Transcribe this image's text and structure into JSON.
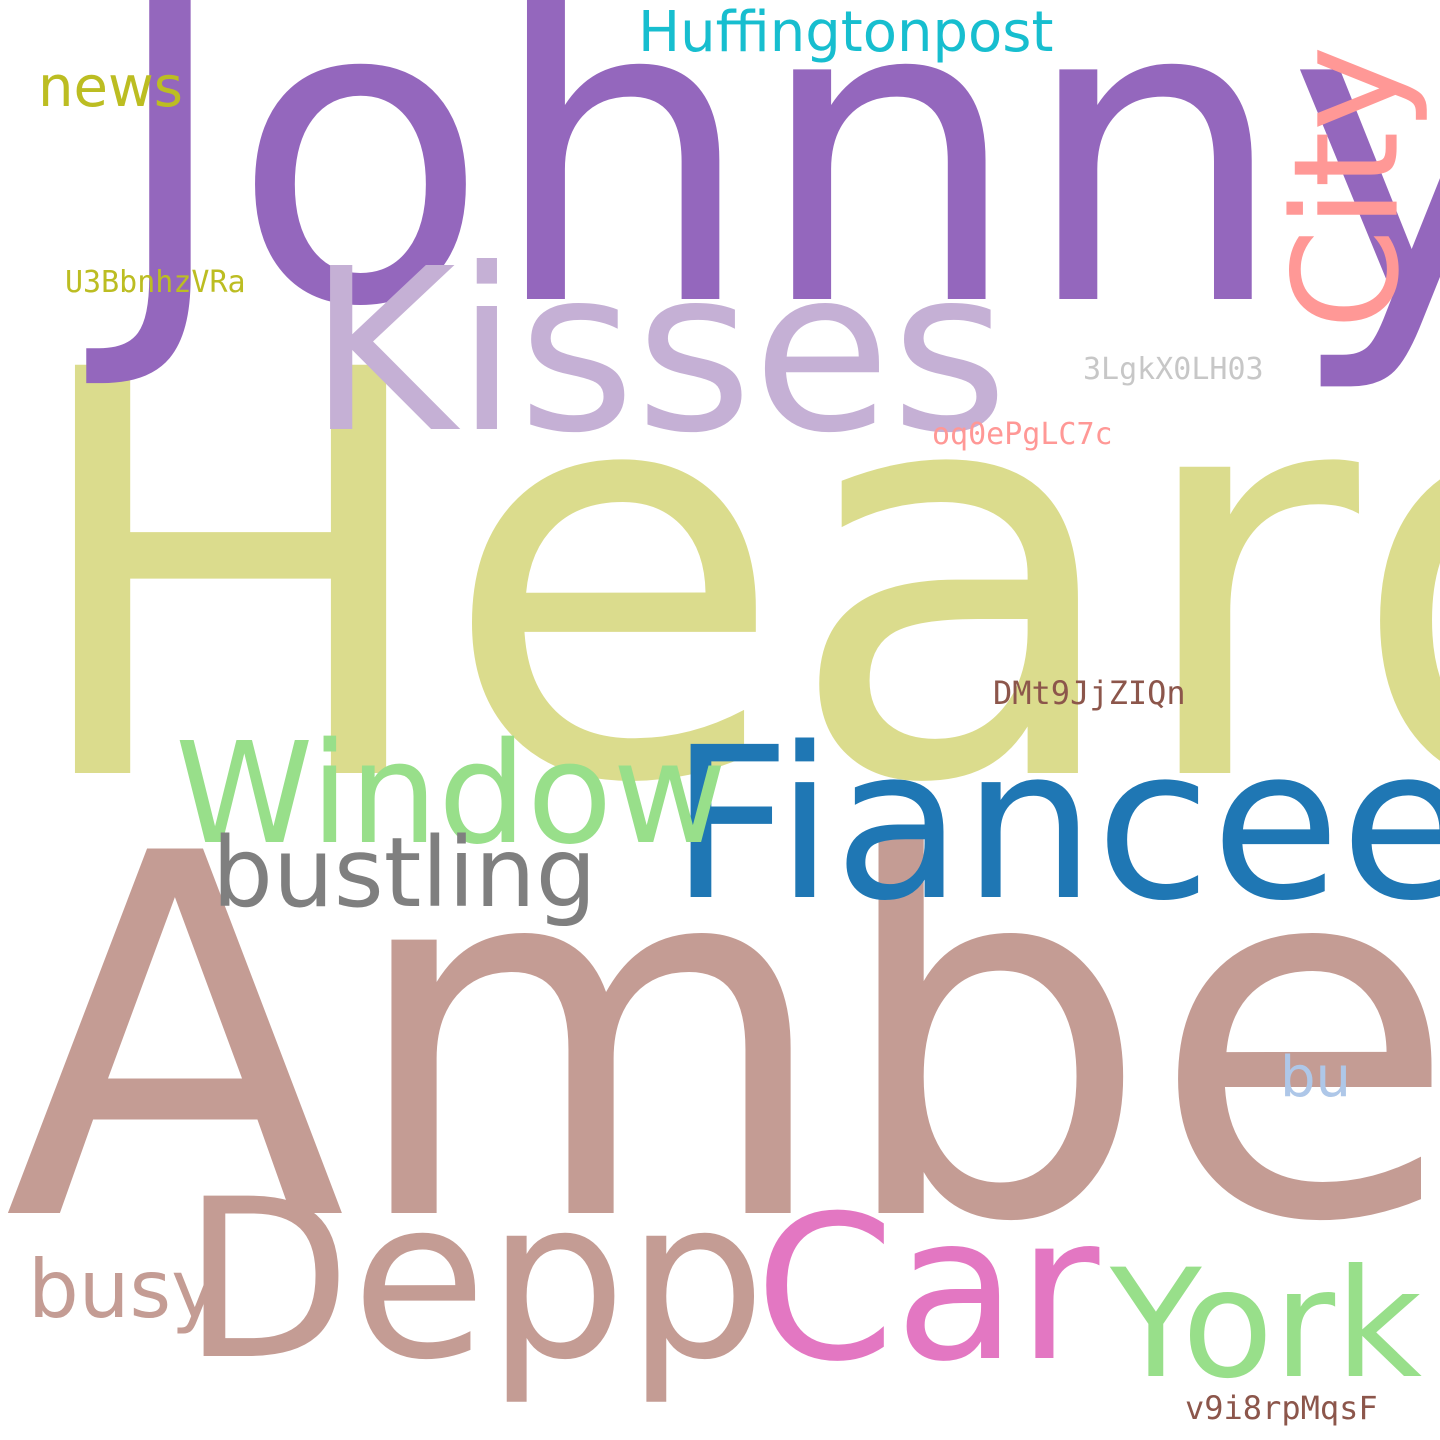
{
  "cloud": {
    "background": "#ffffff",
    "words": {
      "johnny": {
        "text": "Johnny",
        "color": "#9467bd"
      },
      "heard": {
        "text": "Heard",
        "color": "#dbdc8d"
      },
      "amber": {
        "text": "Amber",
        "color": "#c49c94"
      },
      "kisses": {
        "text": "Kisses",
        "color": "#c5b0d5"
      },
      "fiancee": {
        "text": "Fiancee",
        "color": "#1f77b4"
      },
      "window": {
        "text": "Window",
        "color": "#98df8a"
      },
      "bustling": {
        "text": "bustling",
        "color": "#7f7f7f"
      },
      "depp": {
        "text": "Depp",
        "color": "#c49c94"
      },
      "car": {
        "text": "Car",
        "color": "#e377c2"
      },
      "york": {
        "text": "York",
        "color": "#98df8a"
      },
      "busy": {
        "text": "busy",
        "color": "#c49c94"
      },
      "city": {
        "text": "City",
        "color": "#ff9896"
      },
      "huffington": {
        "text": "Huffingtonpost",
        "color": "#17becf"
      },
      "news": {
        "text": "news",
        "color": "#bcbd22"
      },
      "u3b": {
        "text": "U3BbnhzVRa",
        "color": "#bcbd22"
      },
      "lg3": {
        "text": "3LgkX0LH03",
        "color": "#c7c7c7"
      },
      "oq0": {
        "text": "oq0ePgLC7c",
        "color": "#ff9896"
      },
      "dmt": {
        "text": "DMt9JjZIQn",
        "color": "#8c564b"
      },
      "bu": {
        "text": "bu",
        "color": "#aec7e8"
      },
      "v9i": {
        "text": "v9i8rpMqsF",
        "color": "#8c564b"
      }
    }
  }
}
